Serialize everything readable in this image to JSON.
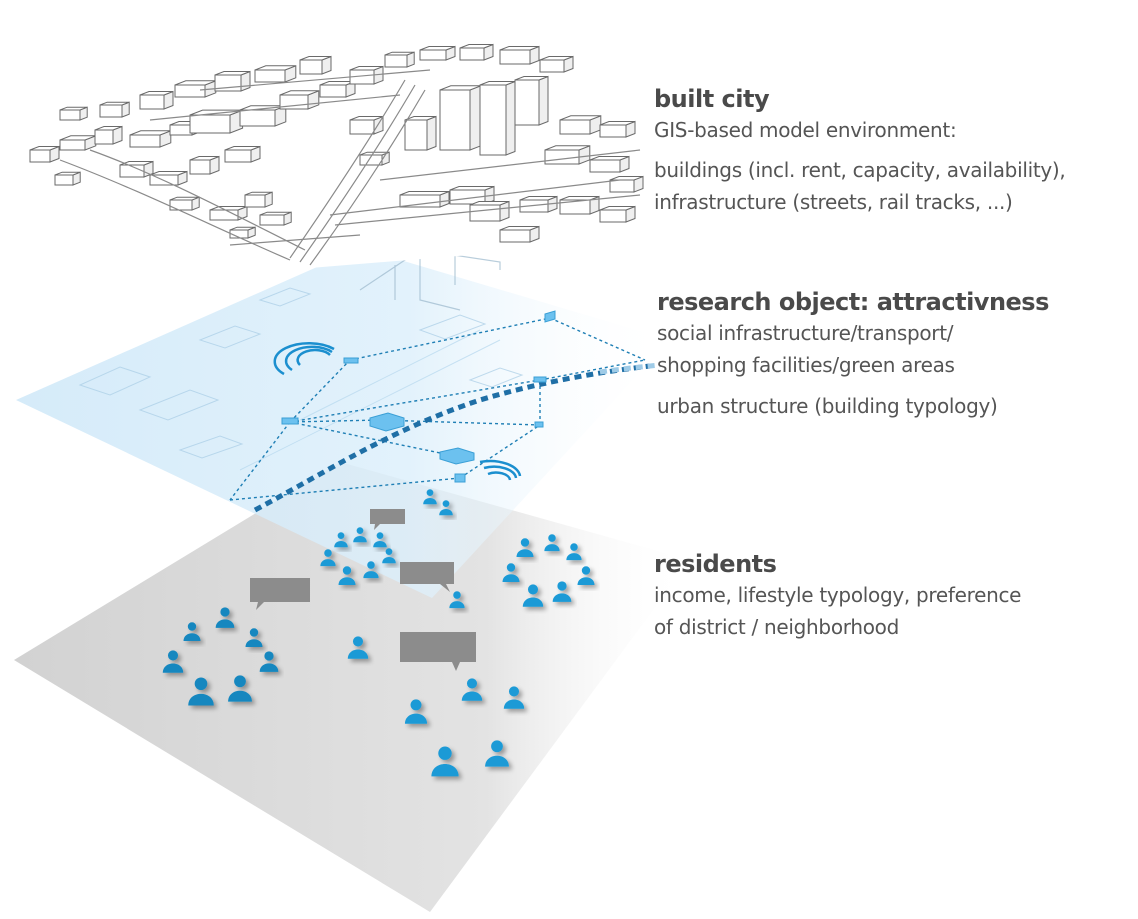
{
  "layers": [
    {
      "title": "built city",
      "lines": [
        "GIS-based model environment:",
        "buildings (incl. rent, capacity, availability),",
        "infrastructure (streets, rail tracks, ...)"
      ]
    },
    {
      "title": "research object: attractivness",
      "lines": [
        "social infrastructure/transport/",
        "shopping facilities/green areas",
        "urban structure (building typology)"
      ]
    },
    {
      "title": "residents",
      "lines": [
        "income, lifestyle typology, preference",
        "of district / neighborhood"
      ]
    }
  ],
  "colors": {
    "resident_icon": "#1b9ad6",
    "resident_icon_dark": "#1487bf",
    "attractiveness_layer": "#d6ecf9",
    "attractiveness_lines": "#1f7fb5",
    "residents_layer": "#d9d9d9",
    "speech_bubble": "#8c8c8c",
    "text_title": "#4a4a4a",
    "text_body": "#555555"
  },
  "icons": [
    "building-sketch-icon",
    "signal-wave-icon",
    "person-icon",
    "speech-bubble-icon"
  ]
}
